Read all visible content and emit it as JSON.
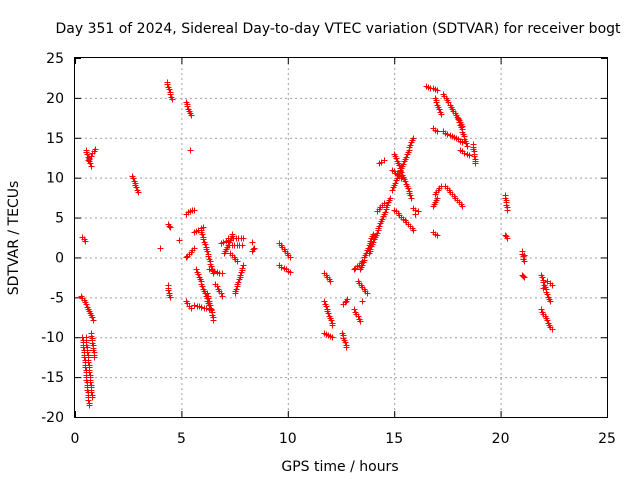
{
  "chart_data": {
    "type": "scatter",
    "title": "Day 351 of 2024, Sidereal Day-to-day VTEC variation (SDTVAR) for receiver bogt",
    "xlabel": "GPS time / hours",
    "ylabel": "SDTVAR / TECUs",
    "xlim": [
      0,
      25
    ],
    "ylim": [
      -20,
      25
    ],
    "xticks": [
      0,
      5,
      10,
      15,
      20,
      25
    ],
    "yticks": [
      -20,
      -15,
      -10,
      -5,
      0,
      5,
      10,
      15,
      20,
      25
    ],
    "grid": true,
    "marker": "+",
    "color": "#ff0000",
    "segments": [
      {
        "x": [
          0.35,
          0.45
        ],
        "y": [
          2.6,
          2.0
        ]
      },
      {
        "x": [
          0.5,
          0.75
        ],
        "y": [
          13.5,
          11.5
        ]
      },
      {
        "x": [
          0.6,
          0.95
        ],
        "y": [
          12.2,
          13.6
        ]
      },
      {
        "x": [
          0.3,
          0.85
        ],
        "y": [
          -4.8,
          -7.8
        ]
      },
      {
        "x": [
          0.35,
          0.65
        ],
        "y": [
          -10.0,
          -18.5
        ]
      },
      {
        "x": [
          0.5,
          0.8
        ],
        "y": [
          -10.0,
          -17.5
        ]
      },
      {
        "x": [
          0.75,
          0.9
        ],
        "y": [
          -9.5,
          -12.5
        ]
      },
      {
        "x": [
          2.7,
          2.95
        ],
        "y": [
          10.2,
          8.2
        ]
      },
      {
        "x": [
          4.3,
          4.55
        ],
        "y": [
          22.0,
          19.8
        ]
      },
      {
        "x": [
          4.35,
          4.45
        ],
        "y": [
          4.2,
          3.8
        ]
      },
      {
        "x": [
          4.35,
          4.45
        ],
        "y": [
          -3.5,
          -5.0
        ]
      },
      {
        "x": [
          5.2,
          5.45
        ],
        "y": [
          19.5,
          17.8
        ]
      },
      {
        "x": [
          5.2,
          5.5
        ],
        "y": [
          5.5,
          6.0
        ]
      },
      {
        "x": [
          5.2,
          5.45
        ],
        "y": [
          -5.5,
          -6.3
        ]
      },
      {
        "x": [
          5.2,
          5.6
        ],
        "y": [
          0.0,
          1.2
        ]
      },
      {
        "x": [
          5.6,
          6.0
        ],
        "y": [
          3.2,
          3.8
        ]
      },
      {
        "x": [
          5.7,
          6.3
        ],
        "y": [
          -1.5,
          -6.0
        ]
      },
      {
        "x": [
          5.9,
          6.5
        ],
        "y": [
          3.5,
          -2.0
        ]
      },
      {
        "x": [
          5.6,
          6.4
        ],
        "y": [
          -6.0,
          -6.5
        ]
      },
      {
        "x": [
          6.2,
          6.5
        ],
        "y": [
          -4.5,
          -7.8
        ]
      },
      {
        "x": [
          6.3,
          6.9
        ],
        "y": [
          -1.5,
          -2.0
        ]
      },
      {
        "x": [
          6.6,
          6.9
        ],
        "y": [
          -3.3,
          -4.8
        ]
      },
      {
        "x": [
          6.85,
          7.2
        ],
        "y": [
          1.8,
          2.2
        ]
      },
      {
        "x": [
          7.0,
          7.4
        ],
        "y": [
          0.5,
          3.0
        ]
      },
      {
        "x": [
          7.2,
          7.9
        ],
        "y": [
          2.5,
          2.5
        ]
      },
      {
        "x": [
          7.25,
          7.85
        ],
        "y": [
          1.5,
          1.5
        ]
      },
      {
        "x": [
          7.5,
          7.9
        ],
        "y": [
          -4.5,
          -1.0
        ]
      },
      {
        "x": [
          7.3,
          7.6
        ],
        "y": [
          0.5,
          -0.5
        ]
      },
      {
        "x": [
          8.3,
          8.4
        ],
        "y": [
          0.8,
          1.2
        ]
      },
      {
        "x": [
          9.6,
          10.1
        ],
        "y": [
          1.8,
          0.0
        ]
      },
      {
        "x": [
          9.6,
          10.1
        ],
        "y": [
          -1.0,
          -1.8
        ]
      },
      {
        "x": [
          11.7,
          12.0
        ],
        "y": [
          -2.0,
          -3.0
        ]
      },
      {
        "x": [
          11.7,
          12.1
        ],
        "y": [
          -5.5,
          -8.5
        ]
      },
      {
        "x": [
          11.7,
          12.1
        ],
        "y": [
          -9.5,
          -10.0
        ]
      },
      {
        "x": [
          12.6,
          12.8
        ],
        "y": [
          -5.8,
          -5.2
        ]
      },
      {
        "x": [
          12.55,
          12.75
        ],
        "y": [
          -9.5,
          -11.2
        ]
      },
      {
        "x": [
          13.1,
          13.5
        ],
        "y": [
          -1.5,
          -0.5
        ]
      },
      {
        "x": [
          13.1,
          13.4
        ],
        "y": [
          -6.5,
          -8.0
        ]
      },
      {
        "x": [
          13.3,
          13.7
        ],
        "y": [
          -3.0,
          -4.5
        ]
      },
      {
        "x": [
          13.4,
          14.0
        ],
        "y": [
          -1.5,
          3.0
        ]
      },
      {
        "x": [
          13.8,
          14.8
        ],
        "y": [
          0.5,
          7.5
        ]
      },
      {
        "x": [
          14.2,
          14.5
        ],
        "y": [
          5.8,
          6.8
        ]
      },
      {
        "x": [
          14.3,
          14.5
        ],
        "y": [
          11.8,
          12.2
        ]
      },
      {
        "x": [
          14.9,
          15.9
        ],
        "y": [
          8.5,
          15.0
        ]
      },
      {
        "x": [
          14.9,
          15.3
        ],
        "y": [
          11.0,
          10.0
        ]
      },
      {
        "x": [
          15.0,
          15.8
        ],
        "y": [
          13.0,
          7.5
        ]
      },
      {
        "x": [
          15.0,
          15.9
        ],
        "y": [
          6.0,
          3.5
        ]
      },
      {
        "x": [
          15.9,
          16.1
        ],
        "y": [
          6.2,
          5.8
        ]
      },
      {
        "x": [
          16.5,
          17.0
        ],
        "y": [
          21.5,
          21.0
        ]
      },
      {
        "x": [
          16.9,
          17.2
        ],
        "y": [
          20.0,
          18.0
        ]
      },
      {
        "x": [
          16.9,
          17.2
        ],
        "y": [
          8.0,
          9.0
        ]
      },
      {
        "x": [
          16.8,
          17.0
        ],
        "y": [
          6.5,
          7.5
        ]
      },
      {
        "x": [
          16.8,
          17.0
        ],
        "y": [
          16.2,
          15.8
        ]
      },
      {
        "x": [
          16.8,
          17.0
        ],
        "y": [
          3.2,
          2.8
        ]
      },
      {
        "x": [
          17.3,
          18.2
        ],
        "y": [
          20.5,
          16.5
        ]
      },
      {
        "x": [
          17.3,
          18.2
        ],
        "y": [
          15.8,
          14.5
        ]
      },
      {
        "x": [
          17.4,
          18.2
        ],
        "y": [
          9.0,
          6.5
        ]
      },
      {
        "x": [
          18.0,
          18.4
        ],
        "y": [
          17.5,
          14.0
        ]
      },
      {
        "x": [
          18.1,
          18.5
        ],
        "y": [
          13.5,
          12.8
        ]
      },
      {
        "x": [
          18.7,
          18.8
        ],
        "y": [
          14.2,
          11.8
        ]
      },
      {
        "x": [
          20.2,
          20.3
        ],
        "y": [
          7.8,
          6.0
        ]
      },
      {
        "x": [
          20.2,
          20.3
        ],
        "y": [
          2.8,
          2.5
        ]
      },
      {
        "x": [
          21.0,
          21.1
        ],
        "y": [
          0.8,
          -0.5
        ]
      },
      {
        "x": [
          21.0,
          21.1
        ],
        "y": [
          -2.2,
          -2.5
        ]
      },
      {
        "x": [
          21.9,
          22.3
        ],
        "y": [
          -2.2,
          -5.5
        ]
      },
      {
        "x": [
          21.9,
          22.4
        ],
        "y": [
          -6.5,
          -9.0
        ]
      },
      {
        "x": [
          22.2,
          22.4
        ],
        "y": [
          -3.0,
          -3.5
        ]
      }
    ],
    "points": [
      [
        4.0,
        1.2
      ],
      [
        4.9,
        2.2
      ],
      [
        5.4,
        13.5
      ],
      [
        5.6,
        6.0
      ],
      [
        8.3,
        1.9
      ],
      [
        13.5,
        -5.5
      ],
      [
        16.0,
        5.5
      ],
      [
        21.1,
        0.3
      ],
      [
        22.0,
        -3.8
      ]
    ]
  }
}
